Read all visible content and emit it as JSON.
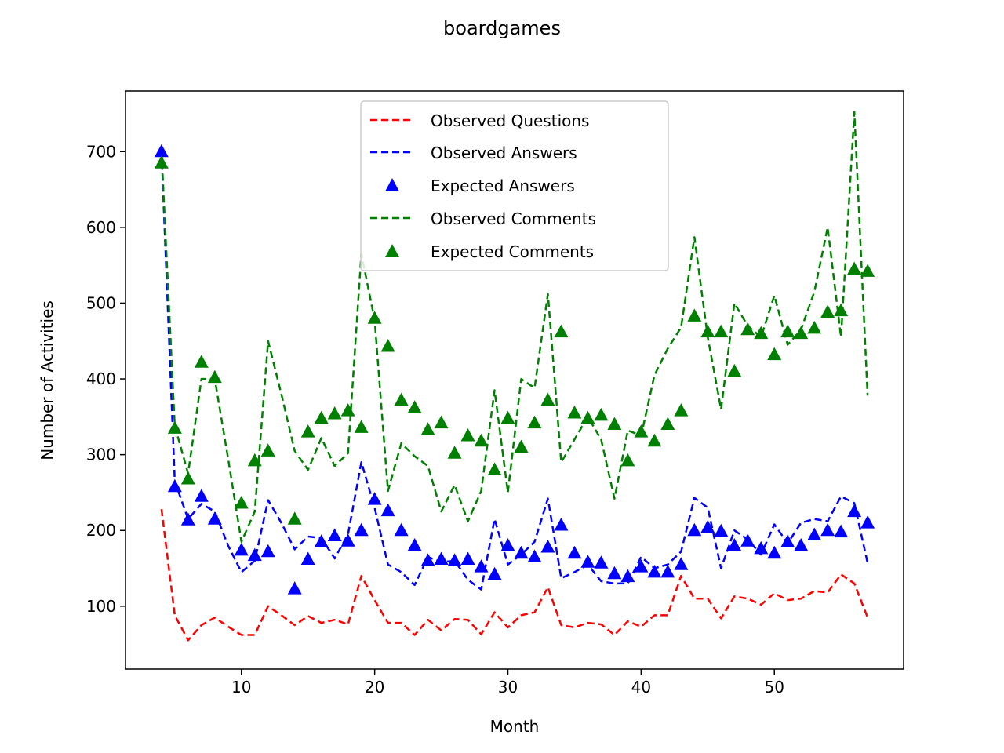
{
  "chart_data": {
    "type": "line",
    "title": "boardgames",
    "xlabel": "Month",
    "ylabel": "Number of Activities",
    "xlim": [
      1.3,
      59.7
    ],
    "ylim": [
      17,
      780
    ],
    "xticks": [
      10,
      20,
      30,
      40,
      50
    ],
    "yticks": [
      100,
      200,
      300,
      400,
      500,
      600,
      700
    ],
    "legend_position": "top-center",
    "x": [
      4,
      5,
      6,
      7,
      8,
      9,
      10,
      11,
      12,
      13,
      14,
      15,
      16,
      17,
      18,
      19,
      20,
      21,
      22,
      23,
      24,
      25,
      26,
      27,
      28,
      29,
      30,
      31,
      32,
      33,
      34,
      35,
      36,
      37,
      38,
      39,
      40,
      41,
      42,
      43,
      44,
      45,
      46,
      47,
      48,
      49,
      50,
      51,
      52,
      53,
      54,
      55,
      56,
      57
    ],
    "series": [
      {
        "name": "Observed Questions",
        "style": "dashed",
        "color": "#ff0000",
        "values": [
          228,
          88,
          55,
          75,
          85,
          73,
          62,
          62,
          100,
          88,
          75,
          87,
          78,
          82,
          76,
          140,
          108,
          78,
          78,
          62,
          82,
          68,
          83,
          82,
          63,
          92,
          72,
          88,
          92,
          125,
          75,
          72,
          78,
          76,
          62,
          80,
          73,
          88,
          88,
          140,
          110,
          110,
          84,
          113,
          110,
          102,
          117,
          108,
          110,
          120,
          118,
          142,
          130,
          85
        ]
      },
      {
        "name": "Observed Answers",
        "style": "dashed",
        "color": "#0000ff",
        "values": [
          700,
          265,
          215,
          235,
          225,
          180,
          145,
          160,
          240,
          210,
          175,
          192,
          190,
          163,
          195,
          290,
          230,
          155,
          145,
          128,
          165,
          158,
          160,
          135,
          122,
          215,
          155,
          168,
          185,
          242,
          137,
          145,
          155,
          133,
          130,
          130,
          165,
          150,
          155,
          172,
          243,
          230,
          150,
          200,
          188,
          168,
          208,
          183,
          210,
          215,
          212,
          245,
          236,
          157
        ]
      },
      {
        "name": "Expected Answers",
        "style": "marker",
        "color": "#0000ff",
        "values": [
          700,
          258,
          214,
          245,
          215,
          null,
          174,
          167,
          172,
          null,
          123,
          162,
          185,
          193,
          186,
          200,
          241,
          226,
          200,
          180,
          160,
          162,
          160,
          162,
          152,
          142,
          180,
          170,
          165,
          178,
          207,
          170,
          158,
          157,
          143,
          139,
          152,
          145,
          145,
          155,
          200,
          204,
          199,
          180,
          186,
          176,
          170,
          185,
          180,
          194,
          200,
          198,
          225,
          210
        ]
      },
      {
        "name": "Observed Comments",
        "style": "dashed",
        "color": "#008000",
        "values": [
          700,
          338,
          275,
          400,
          400,
          295,
          185,
          225,
          450,
          380,
          305,
          280,
          322,
          285,
          302,
          565,
          478,
          252,
          315,
          298,
          285,
          225,
          260,
          212,
          252,
          385,
          250,
          400,
          388,
          512,
          290,
          320,
          350,
          320,
          242,
          332,
          325,
          405,
          440,
          468,
          587,
          455,
          360,
          500,
          470,
          455,
          510,
          445,
          465,
          515,
          600,
          455,
          752,
          378
        ]
      },
      {
        "name": "Expected Comments",
        "style": "marker",
        "color": "#008000",
        "values": [
          685,
          335,
          268,
          422,
          402,
          null,
          236,
          292,
          305,
          null,
          215,
          330,
          348,
          354,
          358,
          336,
          480,
          443,
          372,
          362,
          333,
          342,
          302,
          325,
          318,
          280,
          348,
          310,
          342,
          372,
          462,
          355,
          348,
          352,
          340,
          292,
          330,
          318,
          340,
          358,
          483,
          462,
          462,
          410,
          465,
          460,
          432,
          462,
          460,
          467,
          488,
          490,
          545,
          542
        ]
      }
    ]
  }
}
